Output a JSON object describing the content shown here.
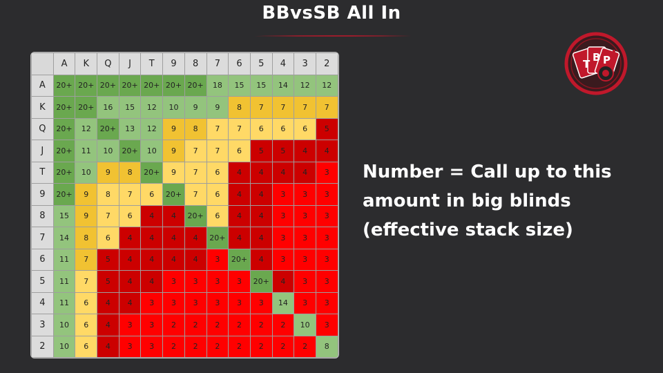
{
  "title": "BBvsSB All In",
  "caption_lines": [
    "Number = Call up to this",
    "amount in big blinds",
    "(effective stack size)"
  ],
  "logo": {
    "letters": [
      "T",
      "B",
      "P"
    ],
    "icon": "tbp-cards-chip-logo"
  },
  "colors": {
    "background": "#2c2c2e",
    "underline": "#c0182b",
    "logo_red": "#c0182b",
    "dark_green": "#6aa84f",
    "light_green": "#93c47d",
    "gold": "#f1c232",
    "light_yellow": "#ffd966",
    "dark_red": "#cc0000",
    "red": "#ff0000"
  },
  "grid": {
    "ranks": [
      "A",
      "K",
      "Q",
      "J",
      "T",
      "9",
      "8",
      "7",
      "6",
      "5",
      "4",
      "3",
      "2"
    ],
    "rows": [
      [
        "20+",
        "20+",
        "20+",
        "20+",
        "20+",
        "20+",
        "20+",
        "18",
        "15",
        "15",
        "14",
        "12",
        "12"
      ],
      [
        "20+",
        "20+",
        "16",
        "15",
        "12",
        "10",
        "9",
        "9",
        "8",
        "7",
        "7",
        "7",
        "7"
      ],
      [
        "20+",
        "12",
        "20+",
        "13",
        "12",
        "9",
        "8",
        "7",
        "7",
        "6",
        "6",
        "6",
        "5"
      ],
      [
        "20+",
        "11",
        "10",
        "20+",
        "10",
        "9",
        "7",
        "7",
        "6",
        "5",
        "5",
        "4",
        "4"
      ],
      [
        "20+",
        "10",
        "9",
        "8",
        "20+",
        "9",
        "7",
        "6",
        "4",
        "4",
        "4",
        "4",
        "3"
      ],
      [
        "20+",
        "9",
        "8",
        "7",
        "6",
        "20+",
        "7",
        "6",
        "4",
        "4",
        "3",
        "3",
        "3"
      ],
      [
        "15",
        "9",
        "7",
        "6",
        "4",
        "4",
        "20+",
        "6",
        "4",
        "4",
        "3",
        "3",
        "3"
      ],
      [
        "14",
        "8",
        "6",
        "4",
        "4",
        "4",
        "4",
        "20+",
        "4",
        "4",
        "3",
        "3",
        "3"
      ],
      [
        "11",
        "7",
        "5",
        "4",
        "4",
        "4",
        "4",
        "3",
        "20+",
        "4",
        "3",
        "3",
        "3"
      ],
      [
        "11",
        "7",
        "5",
        "4",
        "4",
        "3",
        "3",
        "3",
        "3",
        "20+",
        "4",
        "3",
        "3"
      ],
      [
        "11",
        "6",
        "4",
        "4",
        "3",
        "3",
        "3",
        "3",
        "3",
        "3",
        "14",
        "3",
        "3"
      ],
      [
        "10",
        "6",
        "4",
        "3",
        "3",
        "2",
        "2",
        "2",
        "2",
        "2",
        "2",
        "10",
        "3"
      ],
      [
        "10",
        "6",
        "4",
        "3",
        "3",
        "2",
        "2",
        "2",
        "2",
        "2",
        "2",
        "2",
        "8"
      ]
    ],
    "cell_colors": [
      [
        "DG",
        "DG",
        "DG",
        "DG",
        "DG",
        "DG",
        "DG",
        "LG",
        "LG",
        "LG",
        "LG",
        "LG",
        "LG"
      ],
      [
        "DG",
        "DG",
        "LG",
        "LG",
        "LG",
        "LG",
        "LG",
        "LG",
        "Y",
        "Y",
        "Y",
        "Y",
        "Y"
      ],
      [
        "DG",
        "LG",
        "DG",
        "LG",
        "LG",
        "Y",
        "Y",
        "LY",
        "LY",
        "LY",
        "LY",
        "LY",
        "DR"
      ],
      [
        "DG",
        "LG",
        "LG",
        "DG",
        "LG",
        "Y",
        "LY",
        "LY",
        "LY",
        "DR",
        "DR",
        "DR",
        "DR"
      ],
      [
        "DG",
        "LG",
        "Y",
        "Y",
        "DG",
        "LY",
        "LY",
        "LY",
        "DR",
        "DR",
        "DR",
        "DR",
        "R"
      ],
      [
        "DG",
        "Y",
        "LY",
        "LY",
        "LY",
        "DG",
        "LY",
        "LY",
        "DR",
        "DR",
        "R",
        "R",
        "R"
      ],
      [
        "LG",
        "Y",
        "LY",
        "LY",
        "DR",
        "DR",
        "DG",
        "LY",
        "DR",
        "DR",
        "R",
        "R",
        "R"
      ],
      [
        "LG",
        "Y",
        "LY",
        "DR",
        "DR",
        "DR",
        "DR",
        "DG",
        "DR",
        "DR",
        "R",
        "R",
        "R"
      ],
      [
        "LG",
        "Y",
        "DR",
        "DR",
        "DR",
        "DR",
        "DR",
        "R",
        "DG",
        "DR",
        "R",
        "R",
        "R"
      ],
      [
        "LG",
        "LY",
        "DR",
        "DR",
        "DR",
        "R",
        "R",
        "R",
        "R",
        "DG",
        "DR",
        "R",
        "R"
      ],
      [
        "LG",
        "LY",
        "DR",
        "DR",
        "R",
        "R",
        "R",
        "R",
        "R",
        "R",
        "LG",
        "R",
        "R"
      ],
      [
        "LG",
        "LY",
        "DR",
        "R",
        "R",
        "R",
        "R",
        "R",
        "R",
        "R",
        "R",
        "LG",
        "R"
      ],
      [
        "LG",
        "LY",
        "DR",
        "R",
        "R",
        "R",
        "R",
        "R",
        "R",
        "R",
        "R",
        "R",
        "LG"
      ]
    ]
  }
}
